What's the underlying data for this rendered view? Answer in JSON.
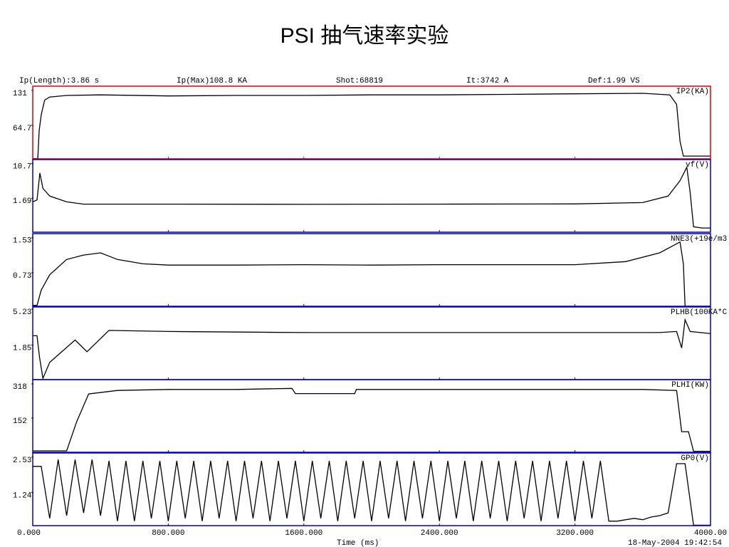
{
  "title": "PSI 抽气速率实验",
  "header": {
    "items": [
      "Ip(Length):3.86 s",
      "Ip(Max)108.8 KA",
      "Shot:68819",
      "It:3742 A",
      "Def:1.99 VS"
    ]
  },
  "x_axis": {
    "label": "Time (ms)",
    "xlim": [
      0,
      4000
    ],
    "xticks": [
      {
        "value": 0,
        "label": "0.000"
      },
      {
        "value": 800,
        "label": "800.000"
      },
      {
        "value": 1600,
        "label": "1600.000"
      },
      {
        "value": 2400,
        "label": "2400.000"
      },
      {
        "value": 3200,
        "label": "3200.000"
      },
      {
        "value": 4000,
        "label": "4000.00"
      }
    ]
  },
  "timestamp": "18-May-2004 19:42:54",
  "chart_data": [
    {
      "type": "line",
      "frame_color": "#e00000",
      "ylim": [
        6.7,
        144.5
      ],
      "yticks": [
        131,
        64.7
      ],
      "x": [
        0,
        30,
        38,
        50,
        70,
        100,
        200,
        400,
        800,
        1200,
        1600,
        2000,
        2400,
        2800,
        3200,
        3600,
        3760,
        3800,
        3820,
        3840,
        3900,
        4000
      ],
      "series": [
        {
          "name": "IP2(KA)",
          "color": "#000000",
          "values": [
            7,
            7,
            60,
            90,
            118,
            124,
            127,
            128,
            126,
            127,
            127,
            128,
            128,
            129,
            130,
            131,
            128,
            110,
            40,
            12,
            12,
            12
          ]
        }
      ]
    },
    {
      "type": "line",
      "frame_color": "#0000cc",
      "ylim": [
        -6.4,
        12.5
      ],
      "yticks": [
        10.7,
        1.69
      ],
      "x": [
        0,
        25,
        42,
        60,
        100,
        200,
        300,
        800,
        1600,
        2400,
        3200,
        3600,
        3750,
        3820,
        3860,
        3880,
        3900,
        3950,
        4000
      ],
      "series": [
        {
          "name": "vf(V)",
          "color": "#000000",
          "values": [
            1.5,
            2,
            9,
            5,
            3,
            1.5,
            0.9,
            0.9,
            0.85,
            0.9,
            0.95,
            1.3,
            3,
            7,
            10.5,
            4,
            -5,
            -5.3,
            -5.3
          ]
        }
      ]
    },
    {
      "type": "line",
      "frame_color": "#0000cc",
      "ylim": [
        0.03,
        1.69
      ],
      "yticks": [
        1.53,
        0.73
      ],
      "x": [
        0,
        25,
        50,
        100,
        200,
        300,
        400,
        500,
        650,
        800,
        1200,
        1600,
        2000,
        2400,
        2800,
        3200,
        3500,
        3700,
        3820,
        3840,
        3850,
        3900,
        4000
      ],
      "series": [
        {
          "name": "NNE3(+19e/m3",
          "color": "#000000",
          "values": [
            0.05,
            0.05,
            0.4,
            0.75,
            1.1,
            1.2,
            1.25,
            1.1,
            1.0,
            0.97,
            0.97,
            0.98,
            0.97,
            0.98,
            0.98,
            0.98,
            1.05,
            1.25,
            1.5,
            1.0,
            0.03,
            0.03,
            0.03
          ]
        }
      ]
    },
    {
      "type": "line",
      "frame_color": "#0000cc",
      "ylim": [
        -1.12,
        5.7
      ],
      "yticks": [
        5.23,
        1.85
      ],
      "x": [
        0,
        25,
        40,
        60,
        100,
        250,
        320,
        450,
        800,
        1600,
        2400,
        3200,
        3700,
        3800,
        3830,
        3850,
        3880,
        4000
      ],
      "series": [
        {
          "name": "PLHB(100KA*C",
          "color": "#000000",
          "values": [
            3.0,
            3.0,
            1.0,
            -1.0,
            0.5,
            2.6,
            1.5,
            3.5,
            3.4,
            3.3,
            3.3,
            3.3,
            3.3,
            3.4,
            1.85,
            4.5,
            3.4,
            3.2
          ]
        }
      ]
    },
    {
      "type": "line",
      "frame_color": "#0000cc",
      "ylim": [
        0,
        352.6
      ],
      "yticks": [
        318,
        152
      ],
      "x": [
        0,
        200,
        260,
        330,
        500,
        800,
        1200,
        1530,
        1550,
        1900,
        1910,
        2400,
        2800,
        3200,
        3600,
        3800,
        3830,
        3870,
        3900,
        4000
      ],
      "series": [
        {
          "name": "PLHI(KW)",
          "color": "#000000",
          "values": [
            7,
            7,
            150,
            283,
            300,
            305,
            305,
            310,
            285,
            285,
            305,
            305,
            305,
            305,
            305,
            300,
            100,
            100,
            5,
            5
          ]
        }
      ]
    },
    {
      "type": "line",
      "frame_color": "#0000cc",
      "ylim": [
        0.135,
        2.79
      ],
      "yticks": [
        2.53,
        1.24
      ],
      "x": [
        0,
        50,
        100,
        150,
        200,
        250,
        300,
        350,
        400,
        450,
        500,
        550,
        600,
        650,
        700,
        750,
        800,
        850,
        900,
        950,
        1000,
        1050,
        1100,
        1150,
        1200,
        1250,
        1300,
        1350,
        1400,
        1450,
        1500,
        1550,
        1600,
        1650,
        1700,
        1750,
        1800,
        1850,
        1900,
        1950,
        2000,
        2050,
        2100,
        2150,
        2200,
        2250,
        2300,
        2350,
        2400,
        2450,
        2500,
        2550,
        2600,
        2650,
        2700,
        2750,
        2800,
        2850,
        2900,
        2950,
        3000,
        3050,
        3100,
        3150,
        3200,
        3250,
        3300,
        3350,
        3400,
        3450,
        3500,
        3550,
        3600,
        3650,
        3700,
        3750,
        3800,
        3850,
        3900,
        3950,
        4000
      ],
      "series": [
        {
          "name": "GP0(V)",
          "color": "#000000",
          "values": [
            2.3,
            2.3,
            0.4,
            2.55,
            0.5,
            2.55,
            0.6,
            2.55,
            0.5,
            2.5,
            0.3,
            2.5,
            0.3,
            2.5,
            0.4,
            2.5,
            0.3,
            2.5,
            0.4,
            2.5,
            0.3,
            2.5,
            0.4,
            2.5,
            0.3,
            2.5,
            0.4,
            2.5,
            0.3,
            2.5,
            0.4,
            2.5,
            0.3,
            2.5,
            0.4,
            2.5,
            0.3,
            2.5,
            0.4,
            2.5,
            0.3,
            2.5,
            0.4,
            2.5,
            0.3,
            2.5,
            0.4,
            2.5,
            0.3,
            2.5,
            0.4,
            2.5,
            0.3,
            2.5,
            0.4,
            2.5,
            0.3,
            2.5,
            0.4,
            2.5,
            0.3,
            2.5,
            0.4,
            2.5,
            0.3,
            2.5,
            0.4,
            2.5,
            0.3,
            0.3,
            0.35,
            0.4,
            0.35,
            0.45,
            0.5,
            0.6,
            2.4,
            2.4,
            0.15,
            0.15,
            0.15
          ]
        }
      ]
    }
  ]
}
